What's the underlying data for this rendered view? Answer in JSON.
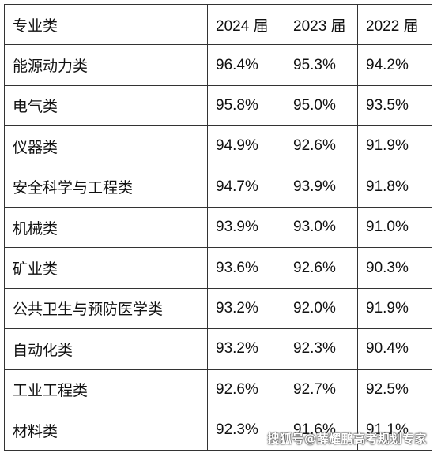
{
  "table": {
    "header": [
      "专业类",
      "2024 届",
      "2023 届",
      "2022 届"
    ],
    "rows": [
      [
        "能源动力类",
        "96.4%",
        "95.3%",
        "94.2%"
      ],
      [
        "电气类",
        "95.8%",
        "95.0%",
        "93.5%"
      ],
      [
        "仪器类",
        "94.9%",
        "92.6%",
        "91.9%"
      ],
      [
        "安全科学与工程类",
        "94.7%",
        "93.9%",
        "91.8%"
      ],
      [
        "机械类",
        "93.9%",
        "93.0%",
        "91.0%"
      ],
      [
        "矿业类",
        "93.6%",
        "92.6%",
        "90.3%"
      ],
      [
        "公共卫生与预防医学类",
        "93.2%",
        "92.0%",
        "91.9%"
      ],
      [
        "自动化类",
        "93.2%",
        "92.3%",
        "90.4%"
      ],
      [
        "工业工程类",
        "92.6%",
        "92.7%",
        "92.5%"
      ],
      [
        "材料类",
        "92.3%",
        "91.6%",
        "91.1%"
      ]
    ]
  },
  "watermark": "搜狐号@薛耀鹏高考规划专家"
}
